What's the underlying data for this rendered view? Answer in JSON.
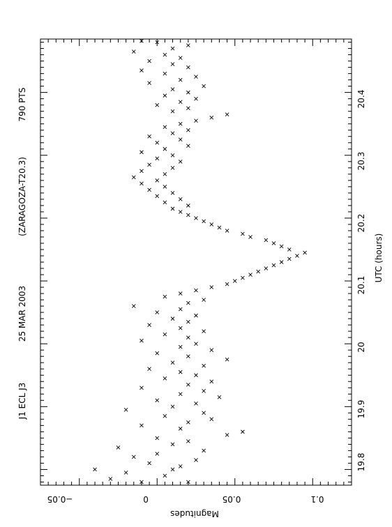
{
  "chart_data": {
    "type": "scatter",
    "orientation": "rotated-90-ccw",
    "title_parts": [
      "J1 ECL J3",
      "25 MAR 2003",
      "(ZARAGOZA-T20.3)",
      "790 PTS"
    ],
    "xlabel": "UTC (hours)",
    "ylabel": "Magnitudes",
    "xlim": [
      19.775,
      20.485
    ],
    "ylim": [
      -0.075,
      0.125
    ],
    "y_inverted": true,
    "x_ticks": [
      19.8,
      19.9,
      20,
      20.1,
      20.2,
      20.3,
      20.4
    ],
    "x_tick_labels": [
      "19.8",
      "19.9",
      "20",
      "20.1",
      "20.2",
      "20.3",
      "20.4"
    ],
    "y_ticks": [
      -0.05,
      0,
      0.05,
      0.1
    ],
    "y_tick_labels": [
      "−0.05",
      "0",
      "0.05",
      "0.1"
    ],
    "grid": false,
    "marker": "x",
    "color": "#000000",
    "series": [
      {
        "points": [
          [
            19.78,
            -0.01
          ],
          [
            19.78,
            0.02
          ],
          [
            19.785,
            -0.03
          ],
          [
            19.79,
            0.005
          ],
          [
            19.795,
            -0.02
          ],
          [
            19.8,
            0.01
          ],
          [
            19.8,
            -0.04
          ],
          [
            19.805,
            0.015
          ],
          [
            19.81,
            -0.005
          ],
          [
            19.815,
            0.025
          ],
          [
            19.82,
            -0.015
          ],
          [
            19.825,
            0.0
          ],
          [
            19.83,
            0.03
          ],
          [
            19.835,
            -0.025
          ],
          [
            19.84,
            0.01
          ],
          [
            19.845,
            0.02
          ],
          [
            19.85,
            0.0
          ],
          [
            19.855,
            0.045
          ],
          [
            19.86,
            0.055
          ],
          [
            19.865,
            0.015
          ],
          [
            19.87,
            -0.01
          ],
          [
            19.875,
            0.02
          ],
          [
            19.88,
            0.035
          ],
          [
            19.885,
            0.005
          ],
          [
            19.89,
            0.03
          ],
          [
            19.895,
            -0.02
          ],
          [
            19.9,
            0.01
          ],
          [
            19.905,
            0.025
          ],
          [
            19.91,
            0.0
          ],
          [
            19.915,
            0.04
          ],
          [
            19.92,
            0.015
          ],
          [
            19.925,
            0.03
          ],
          [
            19.93,
            -0.01
          ],
          [
            19.935,
            0.02
          ],
          [
            19.94,
            0.035
          ],
          [
            19.945,
            0.005
          ],
          [
            19.95,
            0.025
          ],
          [
            19.955,
            0.015
          ],
          [
            19.96,
            -0.005
          ],
          [
            19.965,
            0.03
          ],
          [
            19.97,
            0.01
          ],
          [
            19.975,
            0.045
          ],
          [
            19.98,
            0.02
          ],
          [
            19.985,
            0.0
          ],
          [
            19.99,
            0.035
          ],
          [
            19.995,
            0.015
          ],
          [
            20.0,
            0.025
          ],
          [
            20.005,
            -0.01
          ],
          [
            20.01,
            0.02
          ],
          [
            20.015,
            0.005
          ],
          [
            20.02,
            0.03
          ],
          [
            20.025,
            0.015
          ],
          [
            20.03,
            -0.005
          ],
          [
            20.035,
            0.02
          ],
          [
            20.04,
            0.01
          ],
          [
            20.045,
            0.025
          ],
          [
            20.05,
            0.0
          ],
          [
            20.055,
            0.015
          ],
          [
            20.06,
            -0.015
          ],
          [
            20.065,
            0.02
          ],
          [
            20.07,
            0.03
          ],
          [
            20.075,
            0.005
          ],
          [
            20.08,
            0.015
          ],
          [
            20.085,
            0.025
          ],
          [
            20.09,
            0.035
          ],
          [
            20.095,
            0.045
          ],
          [
            20.1,
            0.05
          ],
          [
            20.105,
            0.055
          ],
          [
            20.11,
            0.06
          ],
          [
            20.115,
            0.065
          ],
          [
            20.12,
            0.07
          ],
          [
            20.125,
            0.075
          ],
          [
            20.13,
            0.08
          ],
          [
            20.135,
            0.085
          ],
          [
            20.14,
            0.09
          ],
          [
            20.145,
            0.095
          ],
          [
            20.15,
            0.085
          ],
          [
            20.155,
            0.08
          ],
          [
            20.16,
            0.075
          ],
          [
            20.165,
            0.07
          ],
          [
            20.17,
            0.06
          ],
          [
            20.175,
            0.055
          ],
          [
            20.18,
            0.045
          ],
          [
            20.185,
            0.04
          ],
          [
            20.19,
            0.035
          ],
          [
            20.195,
            0.03
          ],
          [
            20.2,
            0.025
          ],
          [
            20.205,
            0.02
          ],
          [
            20.21,
            0.015
          ],
          [
            20.215,
            0.01
          ],
          [
            20.22,
            0.02
          ],
          [
            20.225,
            0.005
          ],
          [
            20.23,
            0.015
          ],
          [
            20.235,
            0.0
          ],
          [
            20.24,
            0.01
          ],
          [
            20.245,
            -0.005
          ],
          [
            20.25,
            0.005
          ],
          [
            20.255,
            -0.01
          ],
          [
            20.26,
            0.0
          ],
          [
            20.265,
            -0.015
          ],
          [
            20.27,
            0.005
          ],
          [
            20.275,
            -0.01
          ],
          [
            20.28,
            0.01
          ],
          [
            20.285,
            -0.005
          ],
          [
            20.29,
            0.015
          ],
          [
            20.295,
            0.0
          ],
          [
            20.3,
            0.01
          ],
          [
            20.305,
            -0.01
          ],
          [
            20.31,
            0.005
          ],
          [
            20.315,
            0.02
          ],
          [
            20.32,
            0.0
          ],
          [
            20.325,
            0.015
          ],
          [
            20.33,
            -0.005
          ],
          [
            20.335,
            0.01
          ],
          [
            20.34,
            0.02
          ],
          [
            20.345,
            0.005
          ],
          [
            20.35,
            0.015
          ],
          [
            20.355,
            0.025
          ],
          [
            20.36,
            0.035
          ],
          [
            20.365,
            0.045
          ],
          [
            20.37,
            0.01
          ],
          [
            20.375,
            0.02
          ],
          [
            20.38,
            0.0
          ],
          [
            20.385,
            0.015
          ],
          [
            20.39,
            0.025
          ],
          [
            20.395,
            0.005
          ],
          [
            20.4,
            0.02
          ],
          [
            20.405,
            0.01
          ],
          [
            20.41,
            0.03
          ],
          [
            20.415,
            -0.005
          ],
          [
            20.42,
            0.015
          ],
          [
            20.425,
            0.025
          ],
          [
            20.43,
            0.005
          ],
          [
            20.435,
            -0.01
          ],
          [
            20.44,
            0.02
          ],
          [
            20.445,
            0.01
          ],
          [
            20.45,
            -0.005
          ],
          [
            20.455,
            0.015
          ],
          [
            20.46,
            0.005
          ],
          [
            20.465,
            -0.015
          ],
          [
            20.47,
            0.01
          ],
          [
            20.475,
            0.02
          ],
          [
            20.48,
            0.0
          ],
          [
            20.482,
            -0.01
          ]
        ]
      }
    ]
  }
}
